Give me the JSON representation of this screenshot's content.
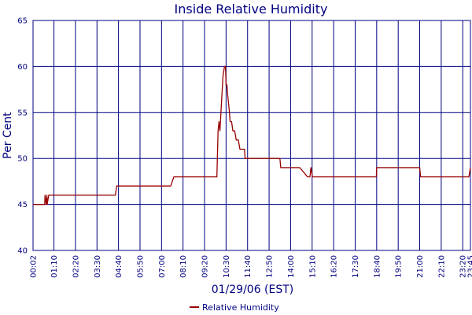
{
  "chart_data": {
    "type": "line",
    "title": "Inside Relative Humidity",
    "xlabel": "01/29/06 (EST)",
    "ylabel": "Per Cent",
    "ylim": [
      40,
      65
    ],
    "xlim_minutes": [
      2,
      1425
    ],
    "y_ticks": [
      "40",
      "45",
      "50",
      "55",
      "60",
      "65"
    ],
    "x_tick_labels": [
      "00:02",
      "01:10",
      "02:20",
      "03:30",
      "04:40",
      "05:50",
      "07:00",
      "08:10",
      "09:20",
      "10:30",
      "11:40",
      "12:50",
      "14:00",
      "15:10",
      "16:20",
      "17:30",
      "18:40",
      "19:50",
      "21:00",
      "22:10",
      "23:20",
      "23:45"
    ],
    "grid": true,
    "legend_position": "bottom",
    "series": [
      {
        "name": "Relative Humidity",
        "color": "#990000",
        "x": [
          "00:02",
          "00:40",
          "00:41",
          "00:45",
          "00:47",
          "00:48",
          "00:53",
          "04:30",
          "04:34",
          "07:30",
          "07:40",
          "10:00",
          "10:04",
          "10:07",
          "10:10",
          "10:15",
          "10:20",
          "10:25",
          "10:28",
          "10:30",
          "10:33",
          "10:35",
          "10:38",
          "10:41",
          "10:43",
          "10:48",
          "10:52",
          "10:58",
          "11:03",
          "11:10",
          "11:15",
          "11:20",
          "11:22",
          "11:30",
          "11:32",
          "11:55",
          "11:58",
          "13:25",
          "13:28",
          "14:25",
          "14:30",
          "14:55",
          "15:00",
          "15:03",
          "15:06",
          "15:11",
          "15:15",
          "17:40",
          "17:45",
          "18:39",
          "18:40",
          "21:00",
          "21:03",
          "23:30",
          "23:40",
          "23:45"
        ],
        "y": [
          45,
          45,
          46,
          45,
          46,
          45,
          46,
          46,
          47,
          47,
          48,
          48,
          53,
          54,
          53,
          56,
          59,
          60,
          60,
          58,
          58,
          57,
          56,
          55,
          54,
          54,
          53,
          53,
          52,
          52,
          51,
          51,
          51,
          51,
          50,
          50,
          50,
          50,
          49,
          49,
          49,
          48,
          48,
          48,
          49,
          48,
          48,
          48,
          48,
          48,
          49,
          49,
          48,
          48,
          48,
          49
        ]
      }
    ]
  }
}
